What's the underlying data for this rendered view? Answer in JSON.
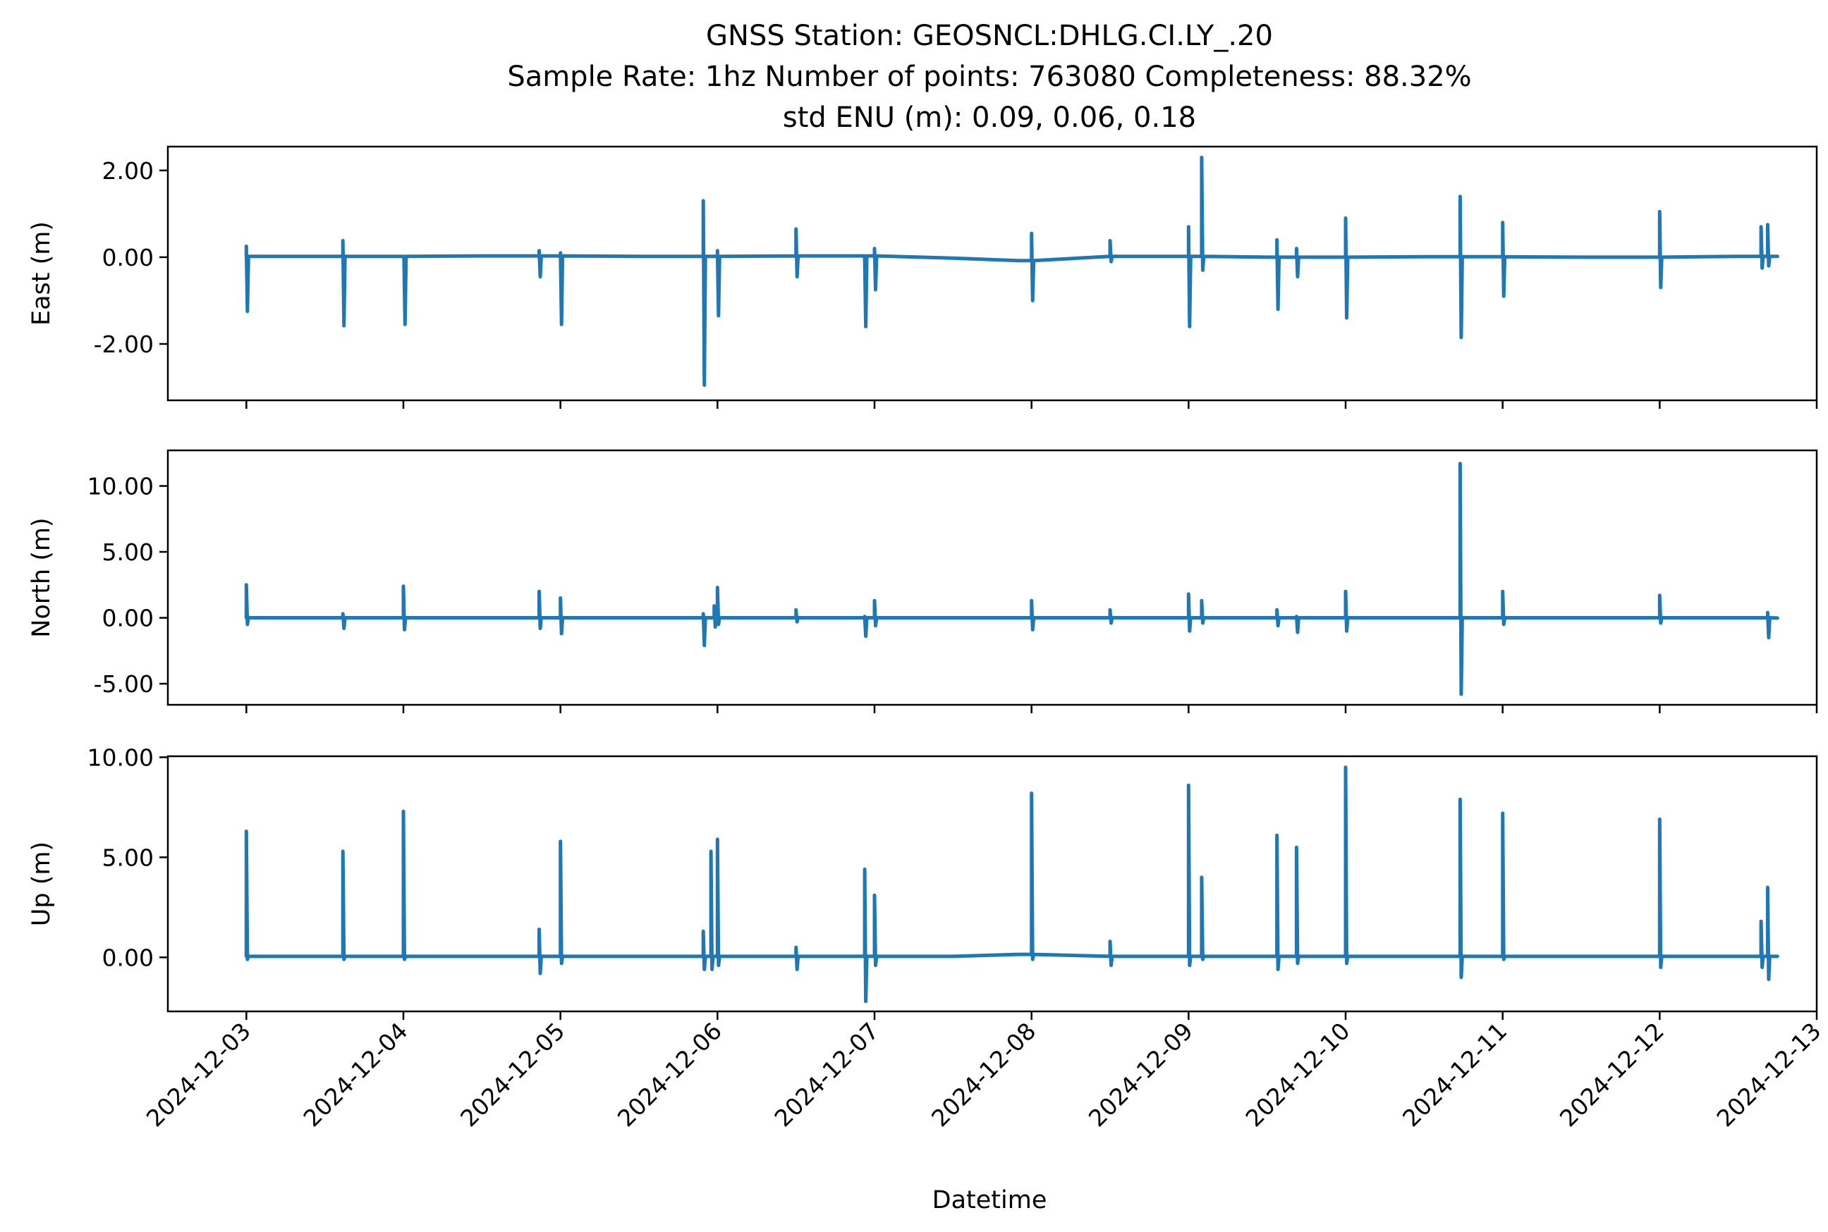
{
  "figure": {
    "title_lines": [
      "GNSS Station: GEOSNCL:DHLG.CI.LY_.20",
      "Sample Rate: 1hz   Number of points: 763080    Completeness:  88.32%",
      "std ENU (m):  0.09, 0.06, 0.18"
    ],
    "xlabel": "Datetime",
    "line_color": "#1f77b4"
  },
  "chart_data": [
    {
      "type": "line",
      "name": "east",
      "ylabel": "East (m)",
      "xlim": [
        "2024-12-02T12:00",
        "2024-12-13T00:00"
      ],
      "ylim": [
        -3.3,
        2.55
      ],
      "yticks": [
        2.0,
        0.0,
        -2.0
      ],
      "ytick_labels": [
        "2.00",
        "0.00",
        "-2.00"
      ],
      "xticks": [
        "2024-12-03",
        "2024-12-04",
        "2024-12-05",
        "2024-12-06",
        "2024-12-07",
        "2024-12-08",
        "2024-12-09",
        "2024-12-10",
        "2024-12-11",
        "2024-12-12",
        "2024-12-13"
      ],
      "xtick_labels": [],
      "baseline": 0.02,
      "baseline_points": [
        [
          "2024-12-03T00:00",
          0.02
        ],
        [
          "2024-12-04T12:00",
          0.03
        ],
        [
          "2024-12-05T12:00",
          0.02
        ],
        [
          "2024-12-06T12:00",
          0.03
        ],
        [
          "2024-12-07T12:00",
          -0.02
        ],
        [
          "2024-12-07T22:00",
          -0.08
        ],
        [
          "2024-12-08T12:00",
          0.02
        ],
        [
          "2024-12-09T12:00",
          0.0
        ],
        [
          "2024-12-10T12:00",
          0.01
        ],
        [
          "2024-12-11T12:00",
          0.0
        ],
        [
          "2024-12-12T12:00",
          0.02
        ],
        [
          "2024-12-12T18:00",
          0.02
        ]
      ],
      "spikes": [
        [
          "2024-12-03T00:00",
          0.25,
          -1.25
        ],
        [
          "2024-12-03T14:45",
          0.38,
          -1.58
        ],
        [
          "2024-12-04T00:05",
          0.0,
          -1.55
        ],
        [
          "2024-12-04T20:45",
          0.15,
          -0.45
        ],
        [
          "2024-12-05T00:00",
          0.1,
          -1.55
        ],
        [
          "2024-12-05T21:50",
          1.3,
          -2.95
        ],
        [
          "2024-12-06T00:00",
          0.15,
          -1.35
        ],
        [
          "2024-12-06T12:00",
          0.65,
          -0.45
        ],
        [
          "2024-12-06T22:30",
          0.0,
          -1.6
        ],
        [
          "2024-12-07T00:00",
          0.2,
          -0.75
        ],
        [
          "2024-12-08T00:00",
          0.55,
          -1.0
        ],
        [
          "2024-12-08T12:00",
          0.38,
          -0.1
        ],
        [
          "2024-12-09T00:00",
          0.7,
          -1.6
        ],
        [
          "2024-12-09T02:00",
          2.3,
          -0.3
        ],
        [
          "2024-12-09T13:30",
          0.4,
          -1.2
        ],
        [
          "2024-12-09T16:30",
          0.2,
          -0.45
        ],
        [
          "2024-12-10T00:00",
          0.9,
          -1.4
        ],
        [
          "2024-12-10T17:30",
          1.4,
          -1.85
        ],
        [
          "2024-12-11T00:00",
          0.8,
          -0.9
        ],
        [
          "2024-12-12T00:00",
          1.05,
          -0.7
        ],
        [
          "2024-12-12T15:30",
          0.7,
          -0.25
        ],
        [
          "2024-12-12T16:30",
          0.75,
          -0.2
        ]
      ]
    },
    {
      "type": "line",
      "name": "north",
      "ylabel": "North (m)",
      "xlim": [
        "2024-12-02T12:00",
        "2024-12-13T00:00"
      ],
      "ylim": [
        -6.6,
        12.7
      ],
      "yticks": [
        10.0,
        5.0,
        0.0,
        -5.0
      ],
      "ytick_labels": [
        "10.00",
        "5.00",
        "0.00",
        "-5.00"
      ],
      "xticks": [
        "2024-12-03",
        "2024-12-04",
        "2024-12-05",
        "2024-12-06",
        "2024-12-07",
        "2024-12-08",
        "2024-12-09",
        "2024-12-10",
        "2024-12-11",
        "2024-12-12",
        "2024-12-13"
      ],
      "xtick_labels": [],
      "baseline": -0.02,
      "baseline_points": [
        [
          "2024-12-03T00:00",
          0.0
        ],
        [
          "2024-12-12T18:00",
          -0.02
        ]
      ],
      "spikes": [
        [
          "2024-12-03T00:00",
          2.5,
          -0.5
        ],
        [
          "2024-12-03T14:45",
          0.3,
          -0.8
        ],
        [
          "2024-12-04T00:00",
          2.4,
          -0.9
        ],
        [
          "2024-12-04T20:45",
          2.0,
          -0.8
        ],
        [
          "2024-12-05T00:00",
          1.5,
          -1.2
        ],
        [
          "2024-12-05T21:50",
          0.3,
          -2.1
        ],
        [
          "2024-12-05T23:30",
          0.9,
          -0.7
        ],
        [
          "2024-12-06T00:00",
          2.3,
          -0.5
        ],
        [
          "2024-12-06T12:00",
          0.6,
          -0.3
        ],
        [
          "2024-12-06T22:30",
          0.1,
          -1.4
        ],
        [
          "2024-12-07T00:00",
          1.3,
          -0.6
        ],
        [
          "2024-12-08T00:00",
          1.3,
          -0.9
        ],
        [
          "2024-12-08T12:00",
          0.6,
          -0.4
        ],
        [
          "2024-12-09T00:00",
          1.8,
          -1.0
        ],
        [
          "2024-12-09T02:00",
          1.3,
          -0.4
        ],
        [
          "2024-12-09T13:30",
          0.6,
          -0.6
        ],
        [
          "2024-12-09T16:30",
          0.1,
          -1.1
        ],
        [
          "2024-12-10T00:00",
          2.0,
          -1.0
        ],
        [
          "2024-12-10T17:30",
          11.7,
          -5.8
        ],
        [
          "2024-12-11T00:00",
          2.0,
          -0.5
        ],
        [
          "2024-12-12T00:00",
          1.7,
          -0.4
        ],
        [
          "2024-12-12T16:30",
          0.4,
          -1.5
        ]
      ]
    },
    {
      "type": "line",
      "name": "up",
      "ylabel": "Up (m)",
      "xlim": [
        "2024-12-02T12:00",
        "2024-12-13T00:00"
      ],
      "ylim": [
        -2.7,
        10.05
      ],
      "yticks": [
        10.0,
        5.0,
        0.0
      ],
      "ytick_labels": [
        "10.00",
        "5.00",
        "0.00"
      ],
      "xticks": [
        "2024-12-03",
        "2024-12-04",
        "2024-12-05",
        "2024-12-06",
        "2024-12-07",
        "2024-12-08",
        "2024-12-09",
        "2024-12-10",
        "2024-12-11",
        "2024-12-12",
        "2024-12-13"
      ],
      "xtick_labels": [
        "2024-12-03",
        "2024-12-04",
        "2024-12-05",
        "2024-12-06",
        "2024-12-07",
        "2024-12-08",
        "2024-12-09",
        "2024-12-10",
        "2024-12-11",
        "2024-12-12",
        "2024-12-13"
      ],
      "baseline": 0.05,
      "baseline_points": [
        [
          "2024-12-03T00:00",
          0.05
        ],
        [
          "2024-12-05T12:00",
          0.05
        ],
        [
          "2024-12-07T12:00",
          0.05
        ],
        [
          "2024-12-07T22:00",
          0.15
        ],
        [
          "2024-12-08T12:00",
          0.05
        ],
        [
          "2024-12-12T18:00",
          0.05
        ]
      ],
      "spikes": [
        [
          "2024-12-03T00:00",
          6.3,
          -0.1
        ],
        [
          "2024-12-03T14:45",
          5.3,
          -0.1
        ],
        [
          "2024-12-04T00:00",
          7.3,
          -0.1
        ],
        [
          "2024-12-04T20:45",
          1.4,
          -0.8
        ],
        [
          "2024-12-05T00:00",
          5.8,
          -0.3
        ],
        [
          "2024-12-05T21:50",
          1.3,
          -0.6
        ],
        [
          "2024-12-05T23:00",
          5.3,
          -0.6
        ],
        [
          "2024-12-06T00:00",
          5.9,
          -0.4
        ],
        [
          "2024-12-06T12:00",
          0.5,
          -0.6
        ],
        [
          "2024-12-06T22:30",
          4.4,
          -2.2
        ],
        [
          "2024-12-07T00:00",
          3.1,
          -0.4
        ],
        [
          "2024-12-08T00:00",
          8.2,
          -0.1
        ],
        [
          "2024-12-08T12:00",
          0.8,
          -0.4
        ],
        [
          "2024-12-09T00:00",
          8.6,
          -0.4
        ],
        [
          "2024-12-09T02:00",
          4.0,
          -0.1
        ],
        [
          "2024-12-09T13:30",
          6.1,
          -0.6
        ],
        [
          "2024-12-09T16:30",
          5.5,
          -0.3
        ],
        [
          "2024-12-10T00:00",
          9.5,
          -0.3
        ],
        [
          "2024-12-10T17:30",
          7.9,
          -1.0
        ],
        [
          "2024-12-11T00:00",
          7.2,
          -0.1
        ],
        [
          "2024-12-12T00:00",
          6.9,
          -0.5
        ],
        [
          "2024-12-12T15:30",
          1.8,
          -0.5
        ],
        [
          "2024-12-12T16:30",
          3.5,
          -1.1
        ]
      ]
    }
  ]
}
